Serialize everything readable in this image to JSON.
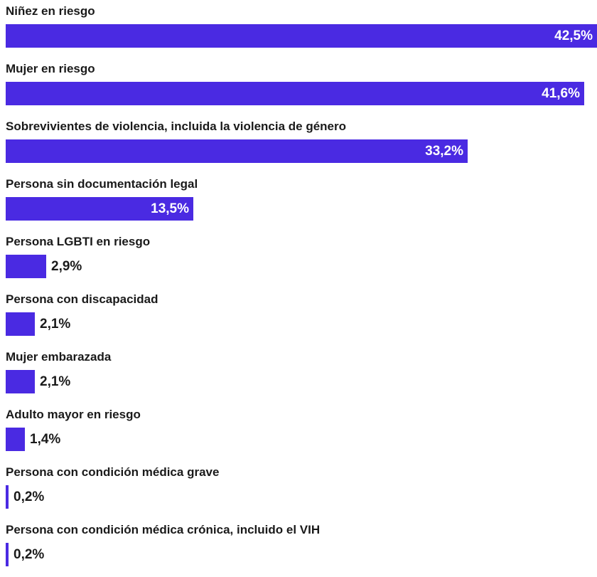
{
  "chart_data": {
    "type": "bar",
    "orientation": "horizontal",
    "categories": [
      "Niñez en riesgo",
      "Mujer en riesgo",
      "Sobrevivientes de violencia, incluida la violencia de género",
      "Persona sin documentación legal",
      "Persona LGBTI en riesgo",
      "Persona con discapacidad",
      "Mujer embarazada",
      "Adulto mayor en riesgo",
      "Persona con condición médica grave",
      "Persona con condición médica crónica, incluido el VIH"
    ],
    "values": [
      42.5,
      41.6,
      33.2,
      13.5,
      2.9,
      2.1,
      2.1,
      1.4,
      0.2,
      0.2
    ],
    "value_labels": [
      "42,5%",
      "41,6%",
      "33,2%",
      "13,5%",
      "2,9%",
      "2,1%",
      "2,1%",
      "1,4%",
      "0,2%",
      "0,2%"
    ],
    "xlim": [
      0,
      42.5
    ],
    "grid": false,
    "legend": "none",
    "bar_color": "#4a2ae2"
  }
}
